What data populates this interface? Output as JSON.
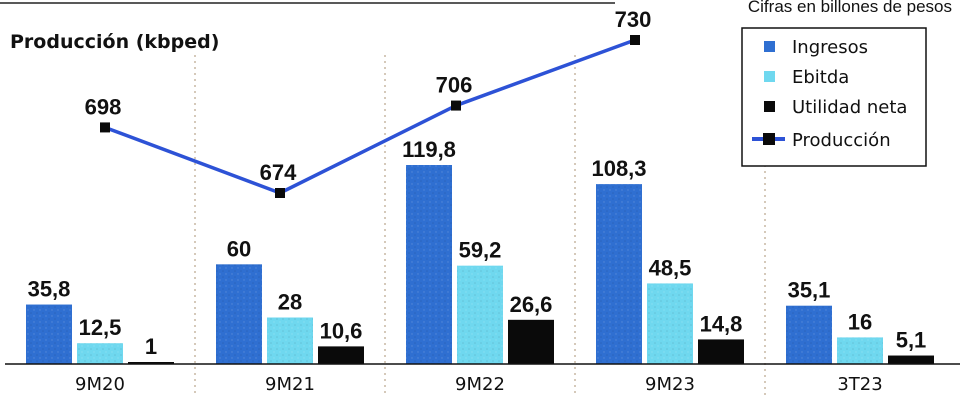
{
  "chart_data": {
    "type": "bar",
    "subtitle": "Cifras en billones de pesos",
    "line_title": "Producción (kbped)",
    "categories": [
      "9M20",
      "9M21",
      "9M22",
      "9M23",
      "3T23"
    ],
    "series": [
      {
        "name": "Ingresos",
        "values": [
          35.8,
          60,
          119.8,
          108.3,
          35.1
        ],
        "labels": [
          "35,8",
          "60",
          "119,8",
          "108,3",
          "35,1"
        ],
        "color": "#2f6fd1"
      },
      {
        "name": "Ebitda",
        "values": [
          12.5,
          28,
          59.2,
          48.5,
          16
        ],
        "labels": [
          "12,5",
          "28",
          "59,2",
          "48,5",
          "16"
        ],
        "color": "#6fd8ef"
      },
      {
        "name": "Utilidad neta",
        "values": [
          1,
          10.6,
          26.6,
          14.8,
          5.1
        ],
        "labels": [
          "1",
          "10,6",
          "26,6",
          "14,8",
          "5,1"
        ],
        "color": "#0a0a0a"
      }
    ],
    "line_series": {
      "name": "Producción",
      "categories": [
        "9M20",
        "9M21",
        "9M22",
        "9M23"
      ],
      "values": [
        698,
        674,
        706,
        730
      ],
      "labels": [
        "698",
        "674",
        "706",
        "730"
      ],
      "color": "#2d52d6"
    },
    "grid": false,
    "legend_position": "top-right"
  }
}
